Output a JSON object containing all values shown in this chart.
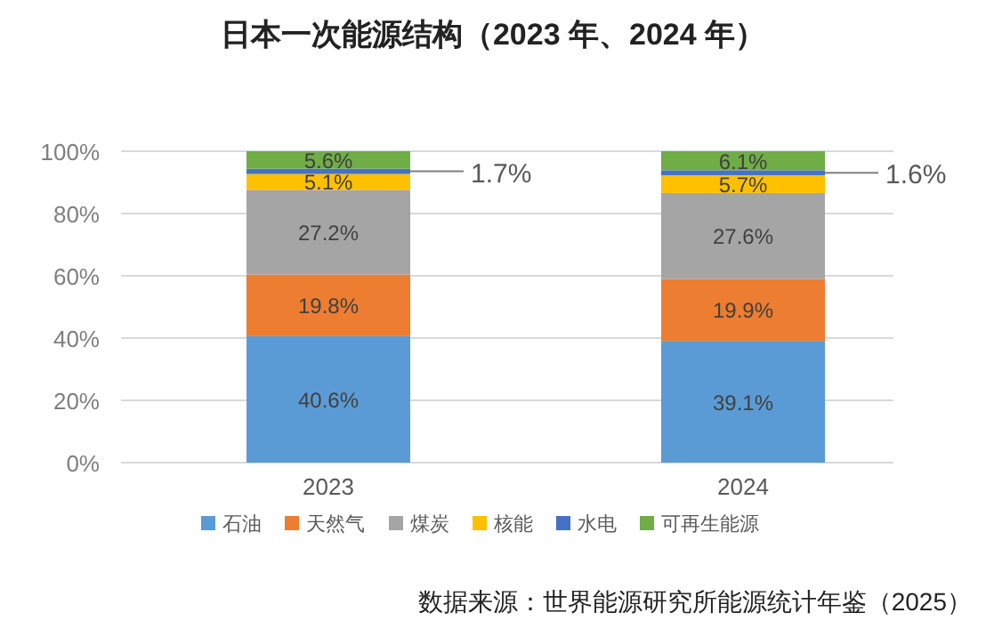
{
  "chart_data": {
    "type": "bar",
    "title": "日本一次能源结构（2023 年、2024 年）",
    "stacked": true,
    "categories": [
      "2023",
      "2024"
    ],
    "series": [
      {
        "name": "石油",
        "color": "#5b9bd5",
        "values": [
          40.6,
          39.1
        ],
        "value_labels": [
          "40.6%",
          "39.1%"
        ]
      },
      {
        "name": "天然气",
        "color": "#ed7d31",
        "values": [
          19.8,
          19.9
        ],
        "value_labels": [
          "19.8%",
          "19.9%"
        ]
      },
      {
        "name": "煤炭",
        "color": "#a5a5a5",
        "values": [
          27.2,
          27.6
        ],
        "value_labels": [
          "27.2%",
          "27.6%"
        ]
      },
      {
        "name": "核能",
        "color": "#ffc000",
        "values": [
          5.1,
          5.7
        ],
        "value_labels": [
          "5.1%",
          "5.7%"
        ]
      },
      {
        "name": "水电",
        "color": "#4472c4",
        "values": [
          1.7,
          1.6
        ],
        "value_labels": [
          "1.7%",
          "1.6%"
        ]
      },
      {
        "name": "可再生能源",
        "color": "#70ad47",
        "values": [
          5.6,
          6.1
        ],
        "value_labels": [
          "5.6%",
          "6.1%"
        ]
      }
    ],
    "ylim": [
      0,
      100
    ],
    "yticks": [
      {
        "value": 0,
        "label": "0%"
      },
      {
        "value": 20,
        "label": "20%"
      },
      {
        "value": 40,
        "label": "40%"
      },
      {
        "value": 60,
        "label": "60%"
      },
      {
        "value": 80,
        "label": "80%"
      },
      {
        "value": 100,
        "label": "100%"
      }
    ],
    "grid": "y",
    "legend": "bottom",
    "annotations": [
      "数据来源：世界能源研究所能源统计年鉴（2025）"
    ]
  }
}
